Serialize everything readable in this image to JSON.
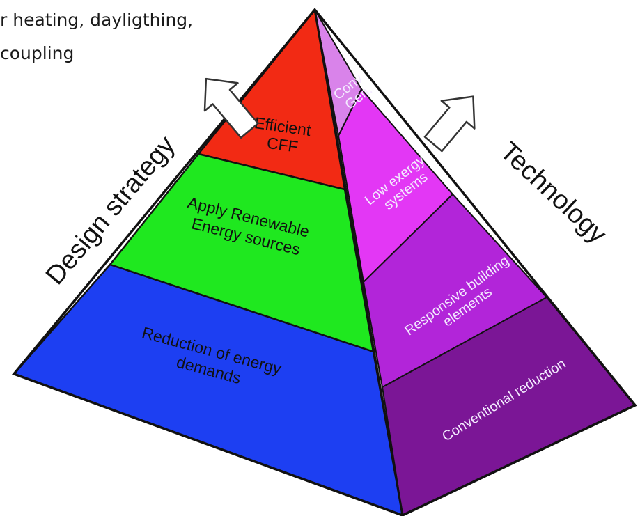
{
  "caption": {
    "line1": "r heating, dayligthing,",
    "line2": "coupling"
  },
  "axes": {
    "left": "Design strategy",
    "right": "Technology"
  },
  "left_face": [
    {
      "lines": [
        "Efficient",
        "CFF"
      ],
      "color": "#f22a14"
    },
    {
      "lines": [
        "Apply Renewable",
        "Energy sources"
      ],
      "color": "#1fe81f"
    },
    {
      "lines": [
        "Reduction of energy",
        "demands"
      ],
      "color": "#1d3ff2"
    }
  ],
  "right_face": [
    {
      "lines": [
        "Conv",
        "Gen."
      ],
      "color": "#d983ea"
    },
    {
      "lines": [
        "Low exergy",
        "systems"
      ],
      "color": "#e337f5"
    },
    {
      "lines": [
        "Responsive building",
        "elements"
      ],
      "color": "#b225d9"
    },
    {
      "lines": [
        "Conventional  reduction"
      ],
      "color": "#7b1696"
    }
  ],
  "colors": {
    "outline": "#111111",
    "arrow_fill": "#ffffff",
    "arrow_stroke": "#333333"
  }
}
